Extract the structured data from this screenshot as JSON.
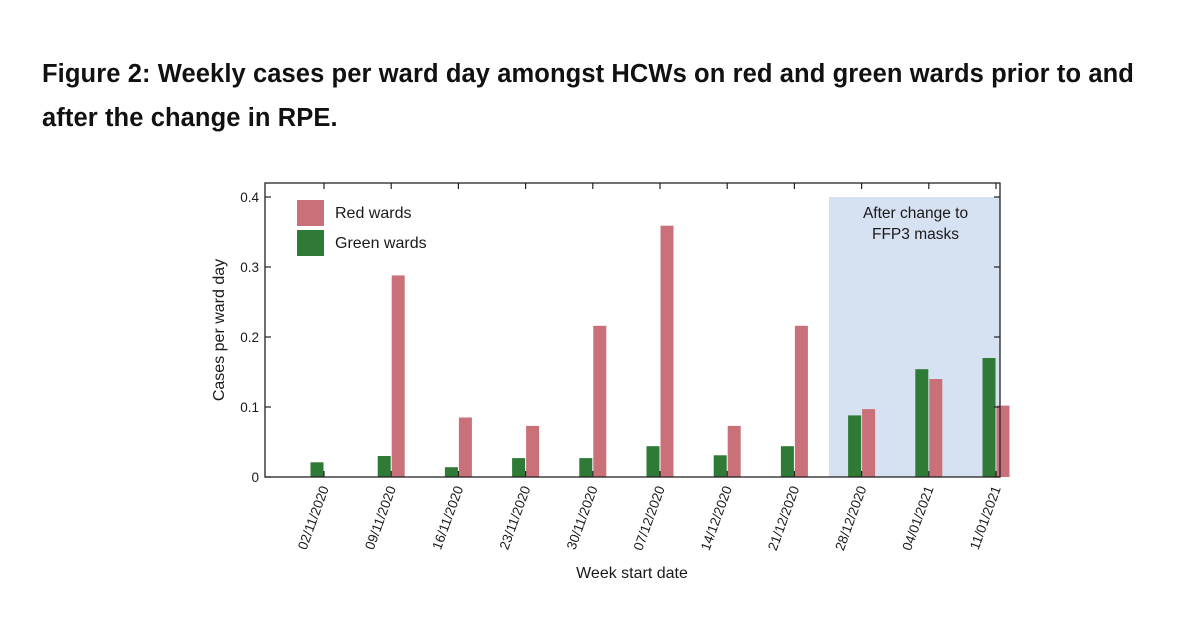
{
  "figure": {
    "caption": "Figure 2: Weekly cases per ward day amongst HCWs on red and green wards prior to and after the change in RPE."
  },
  "chart_data": {
    "type": "bar",
    "title": "",
    "xlabel": "Week start date",
    "ylabel": "Cases per ward day",
    "ylim": [
      0,
      0.4
    ],
    "yticks": [
      0,
      0.1,
      0.2,
      0.3,
      0.4
    ],
    "ytick_labels": [
      "0",
      "0.1",
      "0.2",
      "0.3",
      "0.4"
    ],
    "grid": false,
    "legend_position": "top-left",
    "categories": [
      "02/11/2020",
      "09/11/2020",
      "16/11/2020",
      "23/11/2020",
      "30/11/2020",
      "07/12/2020",
      "14/12/2020",
      "21/12/2020",
      "28/12/2020",
      "04/01/2021",
      "11/01/2021"
    ],
    "series": [
      {
        "name": "Green wards",
        "color": "#2e7a36",
        "values": [
          0.021,
          0.03,
          0.014,
          0.027,
          0.027,
          0.044,
          0.031,
          0.044,
          0.088,
          0.154,
          0.17
        ]
      },
      {
        "name": "Red wards",
        "color": "#c97079",
        "values": [
          0.0,
          0.288,
          0.085,
          0.073,
          0.216,
          0.359,
          0.073,
          0.216,
          0.097,
          0.14,
          0.102
        ]
      }
    ],
    "shaded_region": {
      "start_category": "28/12/2020",
      "end_category": "11/01/2021",
      "color": "#d6e1f1",
      "label_lines": [
        "After change to",
        "FFP3 masks"
      ]
    }
  }
}
